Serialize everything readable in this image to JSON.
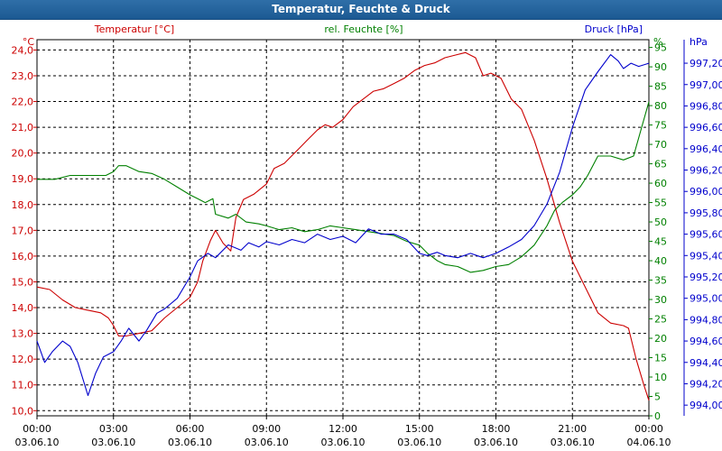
{
  "window": {
    "title": "Temperatur, Feuchte & Druck"
  },
  "chart_data": {
    "type": "line",
    "title": "Temperatur, Feuchte & Druck",
    "legend": [
      "Temperatur [°C]",
      "rel. Feuchte [%]",
      "Druck [hPa]"
    ],
    "units": {
      "temperature": "°C",
      "humidity": "%",
      "pressure": "hPa"
    },
    "colors": {
      "temperature": "#cc0000",
      "humidity": "#008000",
      "pressure": "#0000cc",
      "grid": "#000000"
    },
    "x_range": [
      0,
      24
    ],
    "x_ticks": [
      {
        "h": 0,
        "time": "00:00",
        "date": "03.06.10"
      },
      {
        "h": 3,
        "time": "03:00",
        "date": "03.06.10"
      },
      {
        "h": 6,
        "time": "06:00",
        "date": "03.06.10"
      },
      {
        "h": 9,
        "time": "09:00",
        "date": "03.06.10"
      },
      {
        "h": 12,
        "time": "12:00",
        "date": "03.06.10"
      },
      {
        "h": 15,
        "time": "15:00",
        "date": "03.06.10"
      },
      {
        "h": 18,
        "time": "18:00",
        "date": "03.06.10"
      },
      {
        "h": 21,
        "time": "21:00",
        "date": "03.06.10"
      },
      {
        "h": 24,
        "time": "00:00",
        "date": "04.06.10"
      }
    ],
    "temp_axis": {
      "label": "Temperatur [°C]",
      "unit": "°C",
      "range": [
        9.8,
        24.4
      ],
      "ticks": [
        "10,0",
        "11,0",
        "12,0",
        "13,0",
        "14,0",
        "15,0",
        "16,0",
        "17,0",
        "18,0",
        "19,0",
        "20,0",
        "21,0",
        "22,0",
        "23,0",
        "24,0"
      ]
    },
    "hum_axis": {
      "label": "rel. Feuchte [%]",
      "unit": "%",
      "range": [
        0,
        97
      ],
      "ticks": [
        "0",
        "5",
        "10",
        "15",
        "20",
        "25",
        "30",
        "35",
        "40",
        "45",
        "50",
        "55",
        "60",
        "65",
        "70",
        "75",
        "80",
        "85",
        "90",
        "95"
      ]
    },
    "pres_axis": {
      "label": "Druck [hPa]",
      "unit": "hPa",
      "range": [
        993.9,
        997.42
      ],
      "ticks": [
        "994,00",
        "994,20",
        "994,40",
        "994,60",
        "994,80",
        "995,00",
        "995,20",
        "995,40",
        "995,60",
        "995,80",
        "996,00",
        "996,20",
        "996,40",
        "996,60",
        "996,80",
        "997,00",
        "997,20"
      ]
    },
    "series": [
      {
        "name": "Temperatur",
        "axis": "temp",
        "points": [
          [
            0,
            14.8
          ],
          [
            0.5,
            14.7
          ],
          [
            1,
            14.3
          ],
          [
            1.5,
            14.0
          ],
          [
            2,
            13.9
          ],
          [
            2.5,
            13.8
          ],
          [
            2.8,
            13.6
          ],
          [
            3,
            13.3
          ],
          [
            3.2,
            12.9
          ],
          [
            3.5,
            12.9
          ],
          [
            4,
            13.0
          ],
          [
            4.5,
            13.1
          ],
          [
            5,
            13.6
          ],
          [
            5.5,
            14.0
          ],
          [
            6,
            14.4
          ],
          [
            6.3,
            15.0
          ],
          [
            6.5,
            15.8
          ],
          [
            6.8,
            16.6
          ],
          [
            7,
            17.0
          ],
          [
            7.3,
            16.5
          ],
          [
            7.6,
            16.2
          ],
          [
            7.8,
            17.5
          ],
          [
            8.1,
            18.2
          ],
          [
            8.5,
            18.4
          ],
          [
            9,
            18.8
          ],
          [
            9.3,
            19.4
          ],
          [
            9.7,
            19.6
          ],
          [
            10,
            19.9
          ],
          [
            10.3,
            20.2
          ],
          [
            10.6,
            20.5
          ],
          [
            11,
            20.9
          ],
          [
            11.3,
            21.1
          ],
          [
            11.6,
            21.0
          ],
          [
            12,
            21.3
          ],
          [
            12.4,
            21.8
          ],
          [
            12.8,
            22.1
          ],
          [
            13.2,
            22.4
          ],
          [
            13.6,
            22.5
          ],
          [
            14,
            22.7
          ],
          [
            14.4,
            22.9
          ],
          [
            14.8,
            23.2
          ],
          [
            15.2,
            23.4
          ],
          [
            15.6,
            23.5
          ],
          [
            16,
            23.7
          ],
          [
            16.4,
            23.8
          ],
          [
            16.8,
            23.9
          ],
          [
            17.2,
            23.7
          ],
          [
            17.5,
            23.0
          ],
          [
            17.8,
            23.1
          ],
          [
            18.2,
            22.9
          ],
          [
            18.6,
            22.1
          ],
          [
            19,
            21.7
          ],
          [
            19.5,
            20.5
          ],
          [
            20,
            19.0
          ],
          [
            20.5,
            17.3
          ],
          [
            21,
            15.8
          ],
          [
            21.5,
            14.8
          ],
          [
            22,
            13.8
          ],
          [
            22.5,
            13.4
          ],
          [
            23,
            13.3
          ],
          [
            23.2,
            13.2
          ],
          [
            23.5,
            12.0
          ],
          [
            23.8,
            11.0
          ],
          [
            24,
            10.4
          ]
        ]
      },
      {
        "name": "rel. Feuchte",
        "axis": "hum",
        "points": [
          [
            0,
            61
          ],
          [
            0.7,
            61
          ],
          [
            1.3,
            62
          ],
          [
            2,
            62
          ],
          [
            2.7,
            62
          ],
          [
            3,
            63
          ],
          [
            3.2,
            64.5
          ],
          [
            3.5,
            64.5
          ],
          [
            4,
            63
          ],
          [
            4.5,
            62.5
          ],
          [
            5,
            61
          ],
          [
            5.5,
            59
          ],
          [
            6,
            57
          ],
          [
            6.3,
            56
          ],
          [
            6.6,
            55
          ],
          [
            6.9,
            56
          ],
          [
            7,
            52
          ],
          [
            7.5,
            51
          ],
          [
            7.8,
            52
          ],
          [
            8.2,
            50
          ],
          [
            8.7,
            49.5
          ],
          [
            9,
            49
          ],
          [
            9.5,
            48
          ],
          [
            10,
            48.5
          ],
          [
            10.5,
            47.5
          ],
          [
            11,
            48
          ],
          [
            11.5,
            49
          ],
          [
            12,
            48.5
          ],
          [
            12.5,
            48
          ],
          [
            13,
            47.5
          ],
          [
            13.5,
            47
          ],
          [
            14,
            46.5
          ],
          [
            14.5,
            45
          ],
          [
            15,
            44
          ],
          [
            15.3,
            42
          ],
          [
            15.7,
            40
          ],
          [
            16,
            39
          ],
          [
            16.5,
            38.5
          ],
          [
            17,
            37
          ],
          [
            17.5,
            37.5
          ],
          [
            18,
            38.5
          ],
          [
            18.5,
            39
          ],
          [
            19,
            41
          ],
          [
            19.5,
            44
          ],
          [
            20,
            49
          ],
          [
            20.3,
            53
          ],
          [
            20.6,
            55
          ],
          [
            21,
            57
          ],
          [
            21.3,
            59
          ],
          [
            21.6,
            62
          ],
          [
            22,
            67
          ],
          [
            22.5,
            67
          ],
          [
            23,
            66
          ],
          [
            23.4,
            67
          ],
          [
            23.7,
            74
          ],
          [
            24,
            81
          ]
        ]
      },
      {
        "name": "Druck",
        "axis": "pres",
        "points": [
          [
            0,
            994.6
          ],
          [
            0.3,
            994.4
          ],
          [
            0.6,
            994.5
          ],
          [
            1,
            994.6
          ],
          [
            1.3,
            994.55
          ],
          [
            1.6,
            994.4
          ],
          [
            2,
            994.09
          ],
          [
            2.3,
            994.3
          ],
          [
            2.6,
            994.45
          ],
          [
            3,
            994.5
          ],
          [
            3.3,
            994.6
          ],
          [
            3.6,
            994.72
          ],
          [
            4,
            994.6
          ],
          [
            4.3,
            994.7
          ],
          [
            4.7,
            994.86
          ],
          [
            5,
            994.9
          ],
          [
            5.5,
            995.0
          ],
          [
            6,
            995.2
          ],
          [
            6.3,
            995.35
          ],
          [
            6.7,
            995.42
          ],
          [
            7,
            995.38
          ],
          [
            7.5,
            995.5
          ],
          [
            8,
            995.45
          ],
          [
            8.3,
            995.52
          ],
          [
            8.7,
            995.48
          ],
          [
            9,
            995.53
          ],
          [
            9.5,
            995.5
          ],
          [
            10,
            995.55
          ],
          [
            10.5,
            995.52
          ],
          [
            11,
            995.6
          ],
          [
            11.5,
            995.55
          ],
          [
            12,
            995.58
          ],
          [
            12.5,
            995.52
          ],
          [
            13,
            995.65
          ],
          [
            13.5,
            995.6
          ],
          [
            14,
            995.6
          ],
          [
            14.5,
            995.55
          ],
          [
            15,
            995.42
          ],
          [
            15.3,
            995.4
          ],
          [
            15.7,
            995.43
          ],
          [
            16,
            995.4
          ],
          [
            16.5,
            995.38
          ],
          [
            17,
            995.42
          ],
          [
            17.5,
            995.38
          ],
          [
            18,
            995.42
          ],
          [
            18.5,
            995.48
          ],
          [
            19,
            995.55
          ],
          [
            19.5,
            995.68
          ],
          [
            20,
            995.88
          ],
          [
            20.5,
            996.18
          ],
          [
            21,
            996.6
          ],
          [
            21.5,
            996.95
          ],
          [
            22,
            997.12
          ],
          [
            22.5,
            997.28
          ],
          [
            22.8,
            997.22
          ],
          [
            23,
            997.15
          ],
          [
            23.3,
            997.2
          ],
          [
            23.6,
            997.17
          ],
          [
            24,
            997.2
          ]
        ]
      }
    ]
  }
}
